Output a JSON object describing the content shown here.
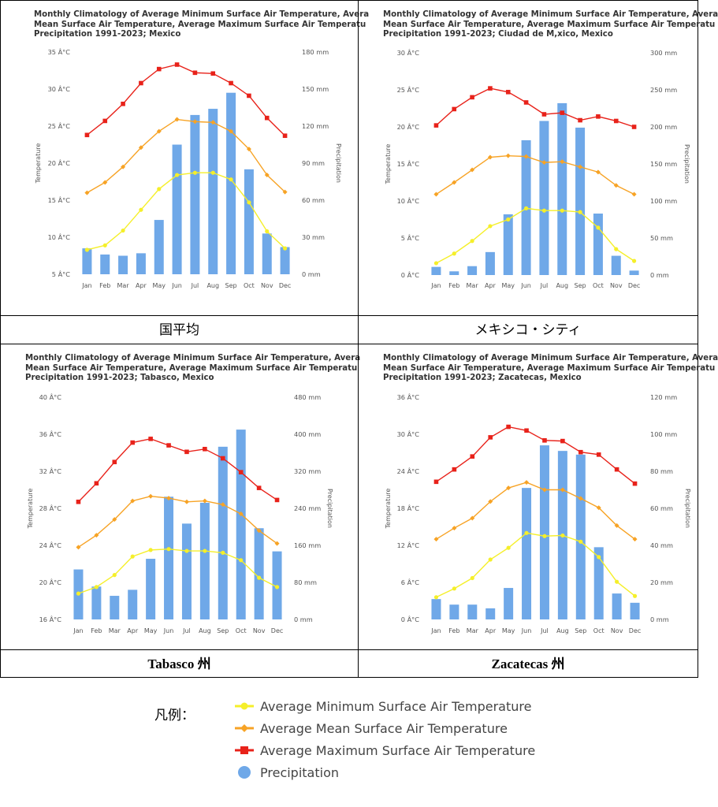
{
  "months": [
    "Jan",
    "Feb",
    "Mar",
    "Apr",
    "May",
    "Jun",
    "Jul",
    "Aug",
    "Sep",
    "Oct",
    "Nov",
    "Dec"
  ],
  "axis_titles": {
    "left": "Temperature",
    "right": "Precipitation"
  },
  "colors": {
    "min": "#f5ef2a",
    "mean": "#f7a325",
    "max": "#e8221a",
    "precip": "#6fa8e8"
  },
  "legend": {
    "title": "凡例：",
    "items": [
      {
        "key": "min",
        "label": "Average Minimum Surface Air Temperature",
        "marker": "circle"
      },
      {
        "key": "mean",
        "label": "Average Mean Surface Air Temperature",
        "marker": "diamond"
      },
      {
        "key": "max",
        "label": "Average Maximum Surface Air Temperature",
        "marker": "square"
      },
      {
        "key": "precip",
        "label": "Precipitation",
        "marker": "big-circle"
      }
    ]
  },
  "chart_data": [
    {
      "type": "bar+line",
      "title": "Monthly Climatology of Average Minimum Surface Air Temperature, Avera\nMean Surface Air Temperature, Average Maximum Surface Air Temperatu\nPrecipitation 1991-2023; Mexico",
      "caption": "国平均",
      "temp_ticks": [
        "5 Â°C",
        "10 Â°C",
        "15 Â°C",
        "20 Â°C",
        "25 Â°C",
        "30 Â°C",
        "35 Â°C"
      ],
      "temp_range": [
        5,
        35
      ],
      "precip_ticks": [
        "0 mm",
        "30 mm",
        "60 mm",
        "90 mm",
        "120 mm",
        "150 mm",
        "180 mm"
      ],
      "precip_range": [
        0,
        180
      ],
      "series": {
        "min": [
          8.3,
          8.9,
          10.9,
          13.7,
          16.5,
          18.4,
          18.7,
          18.7,
          17.8,
          14.7,
          10.8,
          8.5
        ],
        "mean": [
          16.0,
          17.4,
          19.5,
          22.1,
          24.3,
          25.9,
          25.6,
          25.5,
          24.3,
          21.9,
          18.4,
          16.1
        ],
        "max": [
          23.8,
          25.7,
          28.0,
          30.8,
          32.7,
          33.3,
          32.2,
          32.1,
          30.8,
          29.1,
          26.1,
          23.7
        ],
        "precip": [
          21,
          16,
          15,
          17,
          44,
          105,
          129,
          134,
          147,
          85,
          33,
          22
        ]
      }
    },
    {
      "type": "bar+line",
      "title": "Monthly Climatology of Average Minimum Surface Air Temperature, Avera\nMean Surface Air Temperature, Average Maximum Surface Air Temperatu\nPrecipitation 1991-2023; Ciudad de M,xico, Mexico",
      "caption": "メキシコ・シティ",
      "temp_ticks": [
        "0 Â°C",
        "5 Â°C",
        "10 Â°C",
        "15 Â°C",
        "20 Â°C",
        "25 Â°C",
        "30 Â°C"
      ],
      "temp_range": [
        0,
        30
      ],
      "precip_ticks": [
        "0 mm",
        "50 mm",
        "100 mm",
        "150 mm",
        "200 mm",
        "250 mm",
        "300 mm"
      ],
      "precip_range": [
        0,
        300
      ],
      "series": {
        "min": [
          1.6,
          2.9,
          4.6,
          6.6,
          7.5,
          9.0,
          8.7,
          8.7,
          8.5,
          6.4,
          3.5,
          1.9
        ],
        "mean": [
          10.9,
          12.5,
          14.2,
          15.9,
          16.1,
          16.0,
          15.2,
          15.3,
          14.6,
          13.9,
          12.1,
          10.9
        ],
        "max": [
          20.2,
          22.4,
          24.0,
          25.2,
          24.7,
          23.3,
          21.7,
          21.9,
          20.9,
          21.4,
          20.8,
          20.0
        ],
        "precip": [
          11,
          5,
          12,
          31,
          82,
          182,
          208,
          232,
          199,
          83,
          26,
          6
        ]
      }
    },
    {
      "type": "bar+line",
      "title": "Monthly Climatology of Average Minimum Surface Air Temperature, Avera\nMean Surface Air Temperature, Average Maximum Surface Air Temperatu\nPrecipitation 1991-2023; Tabasco, Mexico",
      "caption": "Tabasco  州",
      "temp_ticks": [
        "16 Â°C",
        "20 Â°C",
        "24 Â°C",
        "28 Â°C",
        "32 Â°C",
        "36 Â°C",
        "40 Â°C"
      ],
      "temp_range": [
        16,
        40
      ],
      "precip_ticks": [
        "0 mm",
        "80 mm",
        "160 mm",
        "240 mm",
        "320 mm",
        "400 mm",
        "480 mm"
      ],
      "precip_range": [
        0,
        480
      ],
      "series": {
        "min": [
          18.8,
          19.5,
          20.8,
          22.8,
          23.5,
          23.6,
          23.4,
          23.4,
          23.2,
          22.4,
          20.5,
          19.5
        ],
        "mean": [
          23.8,
          25.1,
          26.8,
          28.8,
          29.3,
          29.1,
          28.7,
          28.8,
          28.4,
          27.4,
          25.6,
          24.2
        ],
        "max": [
          28.7,
          30.7,
          33.0,
          35.1,
          35.5,
          34.8,
          34.1,
          34.4,
          33.4,
          31.9,
          30.2,
          28.9
        ],
        "precip": [
          108,
          71,
          51,
          64,
          131,
          265,
          207,
          252,
          373,
          410,
          197,
          147
        ]
      }
    },
    {
      "type": "bar+line",
      "title": "Monthly Climatology of Average Minimum Surface Air Temperature, Avera\nMean Surface Air Temperature, Average Maximum Surface Air Temperatu\nPrecipitation 1991-2023; Zacatecas, Mexico",
      "caption": "Zacatecas  州",
      "temp_ticks": [
        "0 Â°C",
        "6 Â°C",
        "12 Â°C",
        "18 Â°C",
        "24 Â°C",
        "30 Â°C",
        "36 Â°C"
      ],
      "temp_range": [
        0,
        36
      ],
      "precip_ticks": [
        "0 mm",
        "20 mm",
        "40 mm",
        "60 mm",
        "80 mm",
        "100 mm",
        "120 mm"
      ],
      "precip_range": [
        0,
        120
      ],
      "series": {
        "min": [
          3.6,
          5.0,
          6.7,
          9.7,
          11.6,
          14.0,
          13.5,
          13.6,
          12.6,
          10.1,
          6.1,
          3.8
        ],
        "mean": [
          13.0,
          14.8,
          16.4,
          19.1,
          21.3,
          22.2,
          21.0,
          21.0,
          19.6,
          18.1,
          15.2,
          13.0
        ],
        "max": [
          22.3,
          24.3,
          26.4,
          29.5,
          31.2,
          30.6,
          29.0,
          28.9,
          27.1,
          26.7,
          24.3,
          22.0
        ],
        "precip": [
          11,
          8,
          8,
          6,
          17,
          71,
          94,
          91,
          89,
          39,
          14,
          9
        ]
      }
    }
  ]
}
